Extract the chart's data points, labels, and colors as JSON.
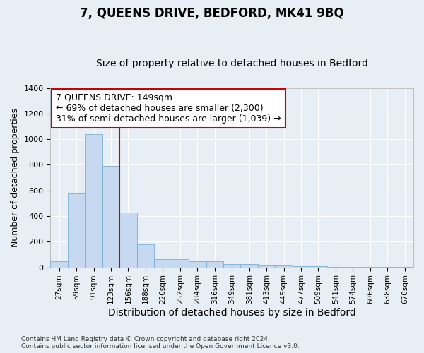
{
  "title": "7, QUEENS DRIVE, BEDFORD, MK41 9BQ",
  "subtitle": "Size of property relative to detached houses in Bedford",
  "xlabel": "Distribution of detached houses by size in Bedford",
  "ylabel": "Number of detached properties",
  "categories": [
    "27sqm",
    "59sqm",
    "91sqm",
    "123sqm",
    "156sqm",
    "188sqm",
    "220sqm",
    "252sqm",
    "284sqm",
    "316sqm",
    "349sqm",
    "381sqm",
    "413sqm",
    "445sqm",
    "477sqm",
    "509sqm",
    "541sqm",
    "574sqm",
    "606sqm",
    "638sqm",
    "670sqm"
  ],
  "values": [
    48,
    578,
    1040,
    790,
    430,
    178,
    65,
    65,
    48,
    48,
    25,
    25,
    15,
    15,
    8,
    8,
    3,
    3,
    1,
    1,
    1
  ],
  "bar_color": "#c6d9f0",
  "bar_edge_color": "#7bafd4",
  "vline_color": "#cc0000",
  "annotation_text": "7 QUEENS DRIVE: 149sqm\n← 69% of detached houses are smaller (2,300)\n31% of semi-detached houses are larger (1,039) →",
  "annotation_box_color": "#ffffff",
  "annotation_box_edge": "#cc0000",
  "ylim": [
    0,
    1400
  ],
  "yticks": [
    0,
    200,
    400,
    600,
    800,
    1000,
    1200,
    1400
  ],
  "footnote": "Contains HM Land Registry data © Crown copyright and database right 2024.\nContains public sector information licensed under the Open Government Licence v3.0.",
  "bg_color": "#e8eef5",
  "grid_color": "#ffffff",
  "title_fontsize": 12,
  "subtitle_fontsize": 10,
  "ylabel_fontsize": 9,
  "xlabel_fontsize": 10
}
